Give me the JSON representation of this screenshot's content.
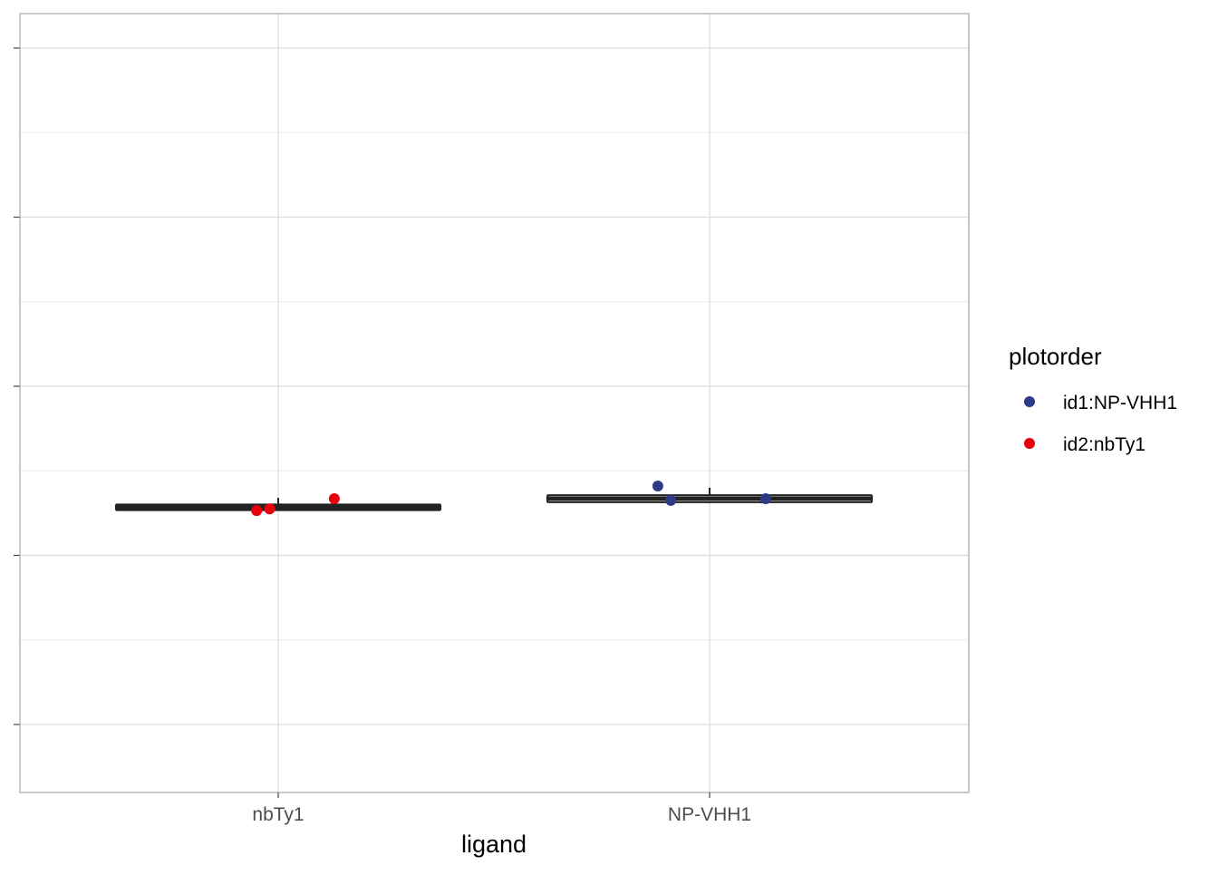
{
  "chart_data": {
    "type": "boxplot",
    "title": "",
    "xlabel": "ligand",
    "ylabel": "",
    "categories": [
      "nbTy1",
      "NP-VHH1"
    ],
    "y_tick_labels_shown": false,
    "grid": true,
    "ylim": [
      0,
      9
    ],
    "y_major_ticks": [
      1,
      3,
      5,
      7,
      9
    ],
    "y_minor_ticks": [
      2,
      4,
      6,
      8
    ],
    "boxes": [
      {
        "category": "nbTy1",
        "whisker_low": 3.55,
        "q1": 3.55,
        "median": 3.57,
        "q3": 3.59,
        "whisker_high": 3.68,
        "color": "#222222"
      },
      {
        "category": "NP-VHH1",
        "whisker_low": 3.62,
        "q1": 3.64,
        "median": 3.67,
        "q3": 3.7,
        "whisker_high": 3.8,
        "color": "#222222"
      }
    ],
    "points": [
      {
        "category": "nbTy1",
        "series": "id2:nbTy1",
        "jitter": -0.05,
        "y": 3.53
      },
      {
        "category": "nbTy1",
        "series": "id2:nbTy1",
        "jitter": -0.02,
        "y": 3.55
      },
      {
        "category": "nbTy1",
        "series": "id2:nbTy1",
        "jitter": 0.13,
        "y": 3.67
      },
      {
        "category": "NP-VHH1",
        "series": "id1:NP-VHH1",
        "jitter": -0.12,
        "y": 3.82
      },
      {
        "category": "NP-VHH1",
        "series": "id1:NP-VHH1",
        "jitter": -0.09,
        "y": 3.65
      },
      {
        "category": "NP-VHH1",
        "series": "id1:NP-VHH1",
        "jitter": 0.13,
        "y": 3.67
      }
    ],
    "legend": {
      "title": "plotorder",
      "position": "right",
      "entries": [
        {
          "label": "id1:NP-VHH1",
          "color": "#2e3a87"
        },
        {
          "label": "id2:nbTy1",
          "color": "#e8000b"
        }
      ]
    }
  }
}
